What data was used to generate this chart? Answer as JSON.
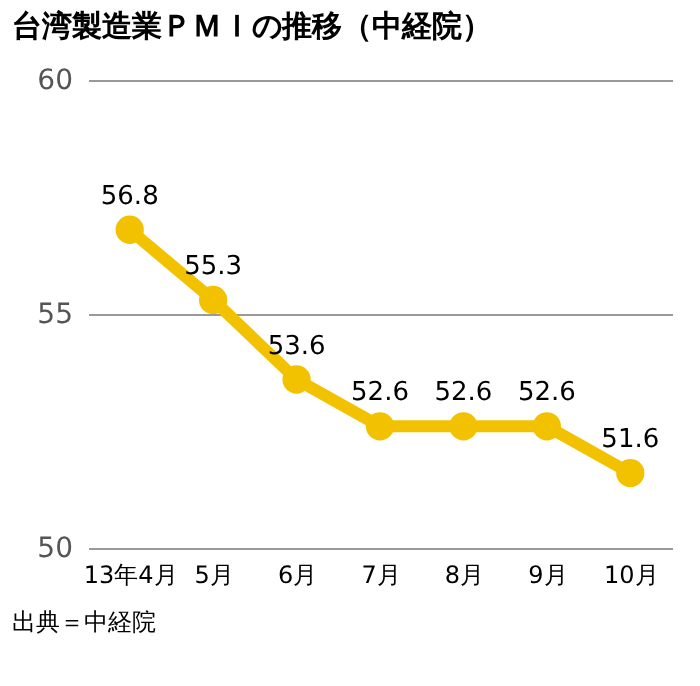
{
  "chart_data": {
    "type": "line",
    "title": "台湾製造業ＰＭＩの推移（中経院）",
    "categories": [
      "13年4月",
      "5月",
      "6月",
      "7月",
      "8月",
      "9月",
      "10月"
    ],
    "series": [
      {
        "color": "#f2c200",
        "values": [
          56.8,
          55.3,
          53.6,
          52.6,
          52.6,
          52.6,
          51.6
        ]
      }
    ],
    "ylim": [
      50,
      60
    ],
    "yticks": [
      50,
      55,
      60
    ],
    "grid": "y",
    "marker": "circle",
    "data_labels": true,
    "annotations": [
      "出典＝中経院"
    ]
  }
}
